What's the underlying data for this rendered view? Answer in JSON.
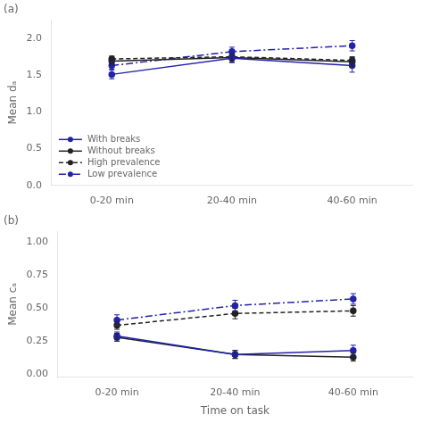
{
  "chart_data": [
    {
      "type": "line",
      "title": "(a)",
      "categories": [
        "0-20 min",
        "20-40 min",
        "40-60 min"
      ],
      "series": [
        {
          "name": "With breaks",
          "color": "#2222aa",
          "line_style": "solid",
          "marker": "o",
          "values": [
            1.51,
            1.73,
            1.63
          ],
          "yerr": [
            0.06,
            0.06,
            0.09
          ]
        },
        {
          "name": "Without breaks",
          "color": "#222222",
          "line_style": "solid",
          "marker": "o",
          "values": [
            1.69,
            1.74,
            1.68
          ],
          "yerr": [
            0.05,
            0.06,
            0.06
          ]
        },
        {
          "name": "High prevalence",
          "color": "#222222",
          "line_style": "dashed",
          "marker": "o",
          "values": [
            1.72,
            1.75,
            1.7
          ],
          "yerr": [
            0.04,
            0.05,
            0.05
          ]
        },
        {
          "name": "Low prevalence",
          "color": "#2222aa",
          "line_style": "dashdot",
          "marker": "o",
          "values": [
            1.63,
            1.82,
            1.9
          ],
          "yerr": [
            0.05,
            0.06,
            0.07
          ]
        }
      ],
      "ylabel": "Mean dₐ",
      "ylim": [
        0.0,
        2.25
      ],
      "yticks": [
        {
          "value": 0.0,
          "label": "0.0"
        },
        {
          "value": 0.5,
          "label": "0.5"
        },
        {
          "value": 1.0,
          "label": "1.0"
        },
        {
          "value": 1.5,
          "label": "1.5"
        },
        {
          "value": 2.0,
          "label": "2.0"
        }
      ],
      "grid": false,
      "legend": "lower left"
    },
    {
      "type": "line",
      "title": "(b)",
      "categories": [
        "0-20 min",
        "20-40 min",
        "40-60 min"
      ],
      "series": [
        {
          "name": "With breaks",
          "color": "#2222aa",
          "line_style": "solid",
          "marker": "o",
          "values": [
            0.29,
            0.15,
            0.18
          ],
          "yerr": [
            0.03,
            0.03,
            0.04
          ]
        },
        {
          "name": "Without breaks",
          "color": "#222222",
          "line_style": "solid",
          "marker": "o",
          "values": [
            0.28,
            0.15,
            0.13
          ],
          "yerr": [
            0.03,
            0.03,
            0.03
          ]
        },
        {
          "name": "High prevalence",
          "color": "#222222",
          "line_style": "dashed",
          "marker": "o",
          "values": [
            0.37,
            0.46,
            0.48
          ],
          "yerr": [
            0.03,
            0.04,
            0.04
          ]
        },
        {
          "name": "Low prevalence",
          "color": "#2222aa",
          "line_style": "dashdot",
          "marker": "o",
          "values": [
            0.41,
            0.52,
            0.57
          ],
          "yerr": [
            0.04,
            0.04,
            0.04
          ]
        }
      ],
      "xlabel": "Time on task",
      "ylabel": "Mean cₐ",
      "ylim": [
        -0.02,
        1.08
      ],
      "yticks": [
        {
          "value": 0.0,
          "label": "0.00"
        },
        {
          "value": 0.25,
          "label": "0.25"
        },
        {
          "value": 0.5,
          "label": "0.50"
        },
        {
          "value": 0.75,
          "label": "0.75"
        },
        {
          "value": 1.0,
          "label": "1.00"
        }
      ],
      "grid": false
    }
  ]
}
